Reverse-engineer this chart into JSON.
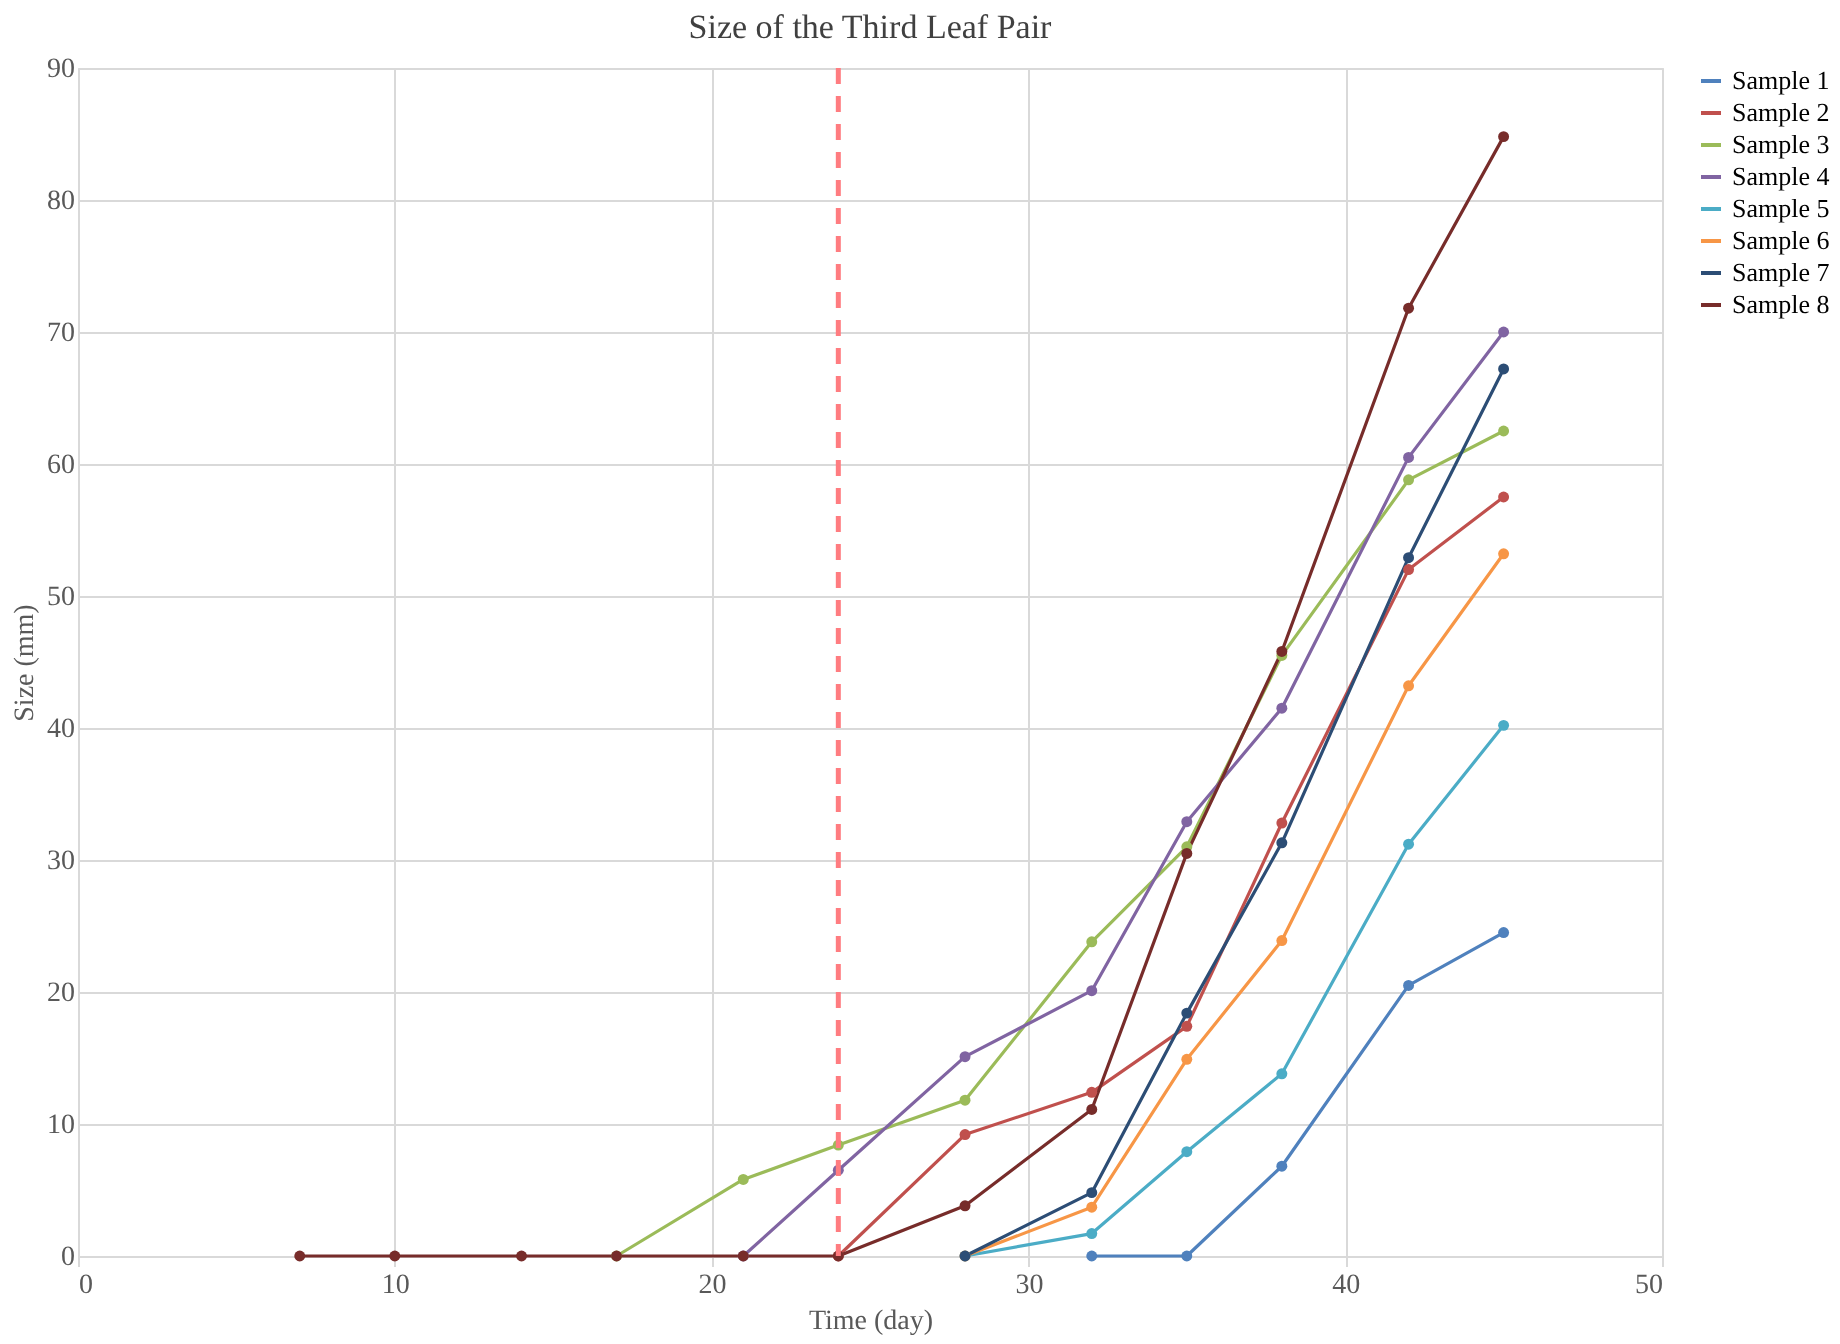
{
  "chart_data": {
    "type": "line",
    "title": "Size of the Third Leaf Pair",
    "xlabel": "Time (day)",
    "ylabel": "Size (mm)",
    "x": [
      7,
      10,
      14,
      17,
      21,
      24,
      28,
      32,
      35,
      38,
      42,
      45
    ],
    "series": [
      {
        "name": "Sample 1",
        "color": "#4f81bd",
        "values": [
          null,
          null,
          null,
          null,
          null,
          null,
          null,
          0,
          0,
          6.8,
          20.5,
          24.5
        ]
      },
      {
        "name": "Sample 2",
        "color": "#c0504d",
        "values": [
          null,
          null,
          null,
          null,
          null,
          0,
          9.2,
          12.4,
          17.4,
          32.8,
          52,
          57.5
        ]
      },
      {
        "name": "Sample 3",
        "color": "#9bbb59",
        "values": [
          null,
          null,
          null,
          0,
          5.8,
          8.4,
          11.8,
          23.8,
          31,
          45.5,
          58.8,
          62.5
        ]
      },
      {
        "name": "Sample 4",
        "color": "#8064a2",
        "values": [
          null,
          null,
          null,
          null,
          0,
          6.5,
          15.1,
          20.1,
          32.9,
          41.5,
          60.5,
          70
        ]
      },
      {
        "name": "Sample 5",
        "color": "#4bacc6",
        "values": [
          null,
          null,
          null,
          null,
          null,
          null,
          0,
          1.7,
          7.9,
          13.8,
          31.2,
          40.2
        ]
      },
      {
        "name": "Sample 6",
        "color": "#f79646",
        "values": [
          null,
          null,
          null,
          null,
          null,
          null,
          0,
          3.7,
          14.9,
          23.9,
          43.2,
          53.2
        ]
      },
      {
        "name": "Sample 7",
        "color": "#2c4d75",
        "values": [
          null,
          null,
          null,
          null,
          null,
          null,
          0,
          4.8,
          18.4,
          31.3,
          52.9,
          67.2
        ]
      },
      {
        "name": "Sample 8",
        "color": "#772c2a",
        "values": [
          0,
          0,
          0,
          0,
          0,
          0,
          3.8,
          11.1,
          30.5,
          45.8,
          71.8,
          84.8
        ]
      }
    ],
    "xlim": [
      0,
      50
    ],
    "xticks": [
      0,
      10,
      20,
      30,
      40,
      50
    ],
    "ylim": [
      0,
      90
    ],
    "yticks": [
      0,
      10,
      20,
      30,
      40,
      50,
      60,
      70,
      80,
      90
    ],
    "ref_lines": [
      {
        "axis": "x",
        "value": 24,
        "color": "#ff7c80",
        "line_style": "dashed"
      }
    ],
    "grid": true,
    "legend": "right",
    "marker": "circle",
    "line_style": "solid"
  }
}
